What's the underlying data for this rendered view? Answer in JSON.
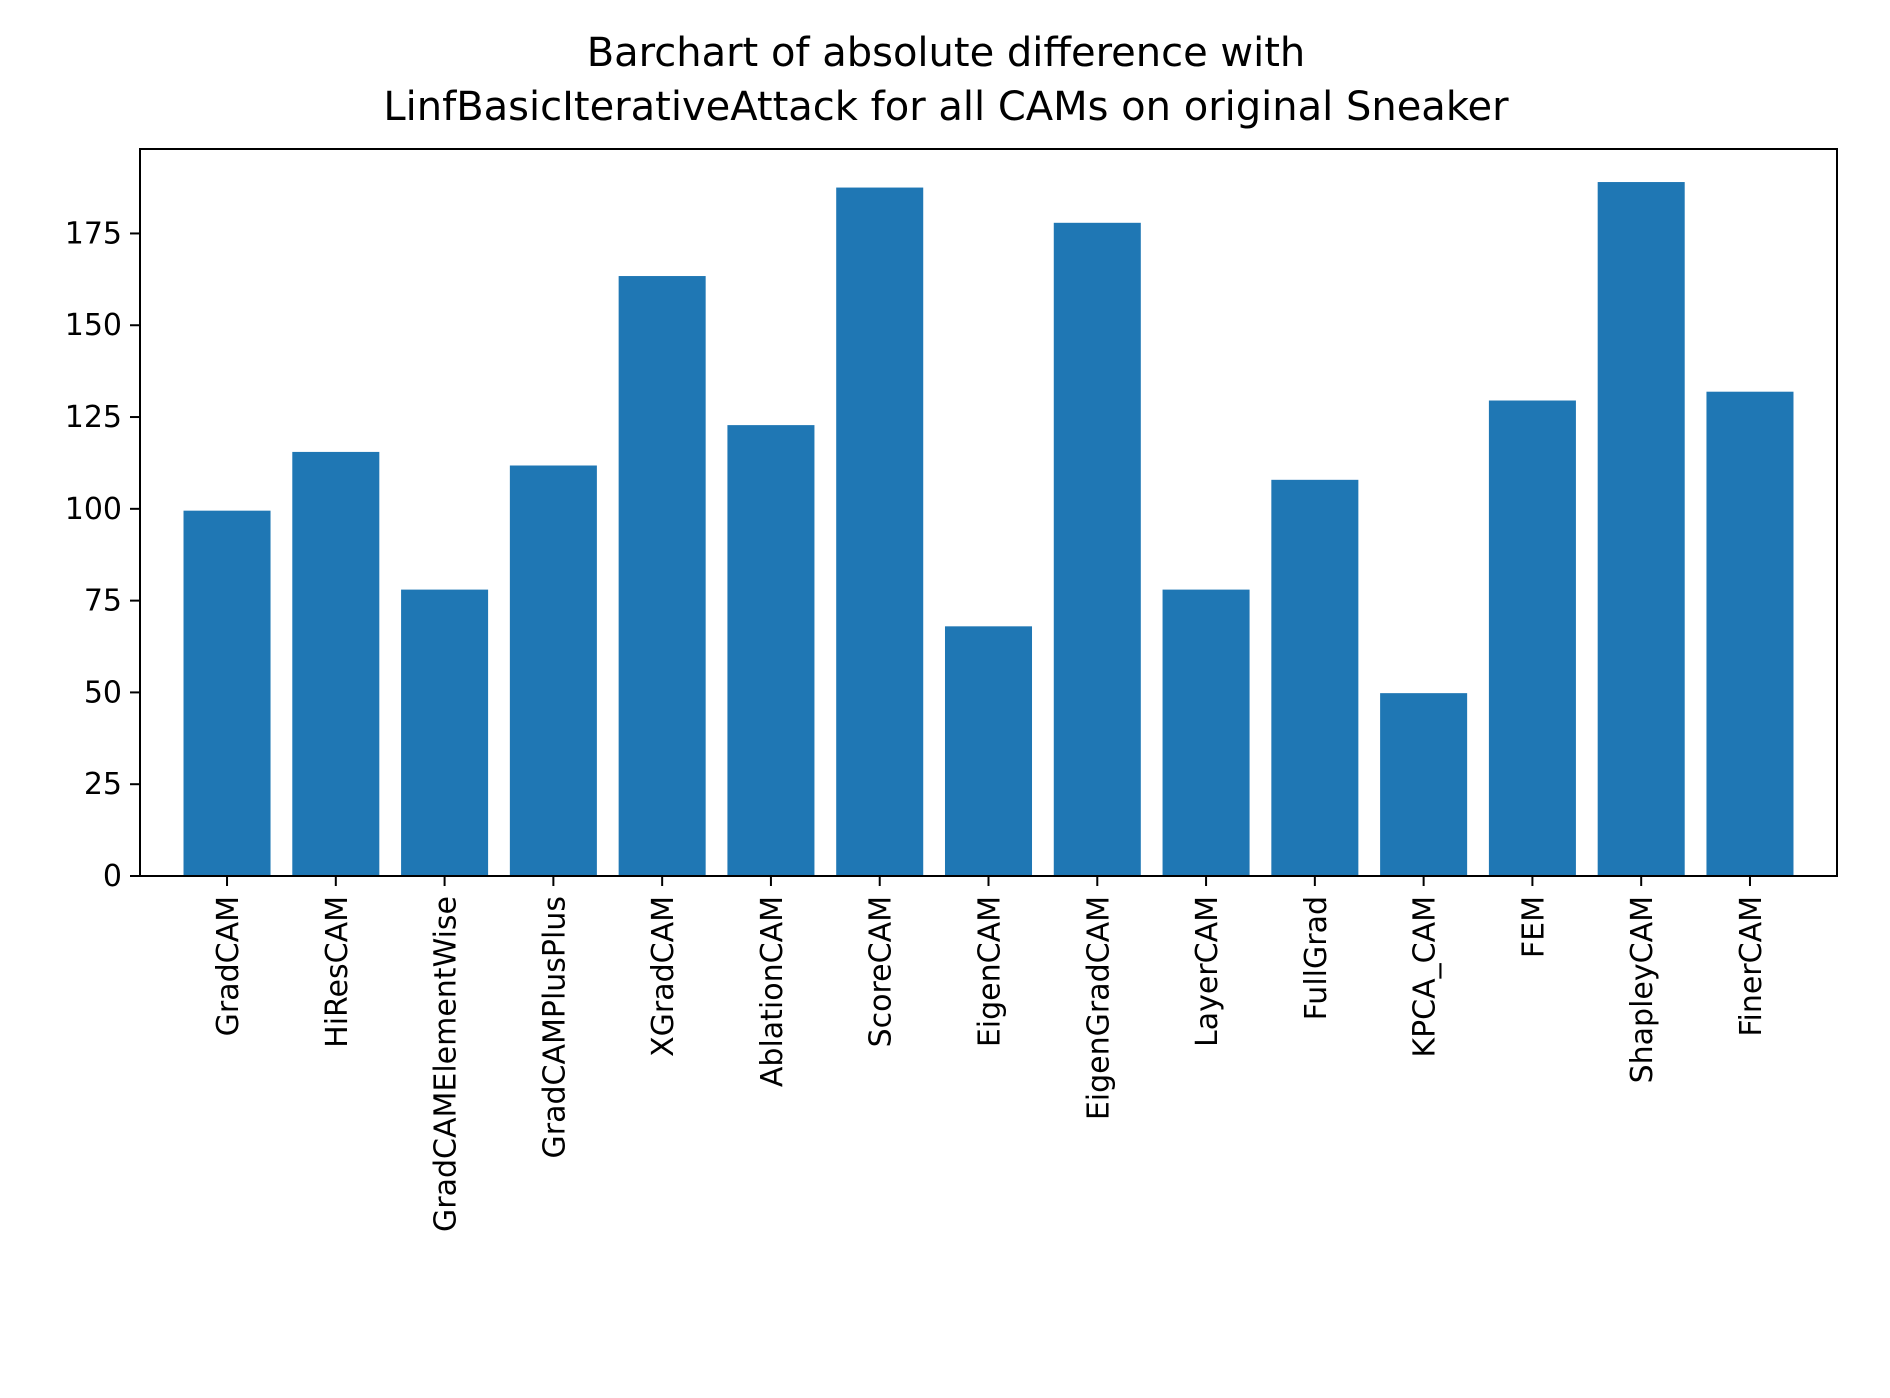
{
  "chart_data": {
    "type": "bar",
    "title": [
      "Barchart of absolute difference with",
      "LinfBasicIterativeAttack for all CAMs on original Sneaker"
    ],
    "xlabel": "",
    "ylabel": "",
    "categories": [
      "GradCAM",
      "HiResCAM",
      "GradCAMElementWise",
      "GradCAMPlusPlus",
      "XGradCAM",
      "AblationCAM",
      "ScoreCAM",
      "EigenCAM",
      "EigenGradCAM",
      "LayerCAM",
      "FullGrad",
      "KPCA_CAM",
      "FEM",
      "ShapleyCAM",
      "FinerCAM"
    ],
    "values": [
      99.5,
      115.5,
      78,
      111.8,
      163.4,
      122.8,
      187.5,
      68,
      177.9,
      78,
      107.9,
      49.8,
      129.5,
      189,
      131.9
    ],
    "ylim": [
      0,
      198
    ],
    "yticks": [
      0,
      25,
      50,
      75,
      100,
      125,
      150,
      175
    ],
    "bar_color": "#1f77b4",
    "grid": false,
    "legend": "none"
  }
}
